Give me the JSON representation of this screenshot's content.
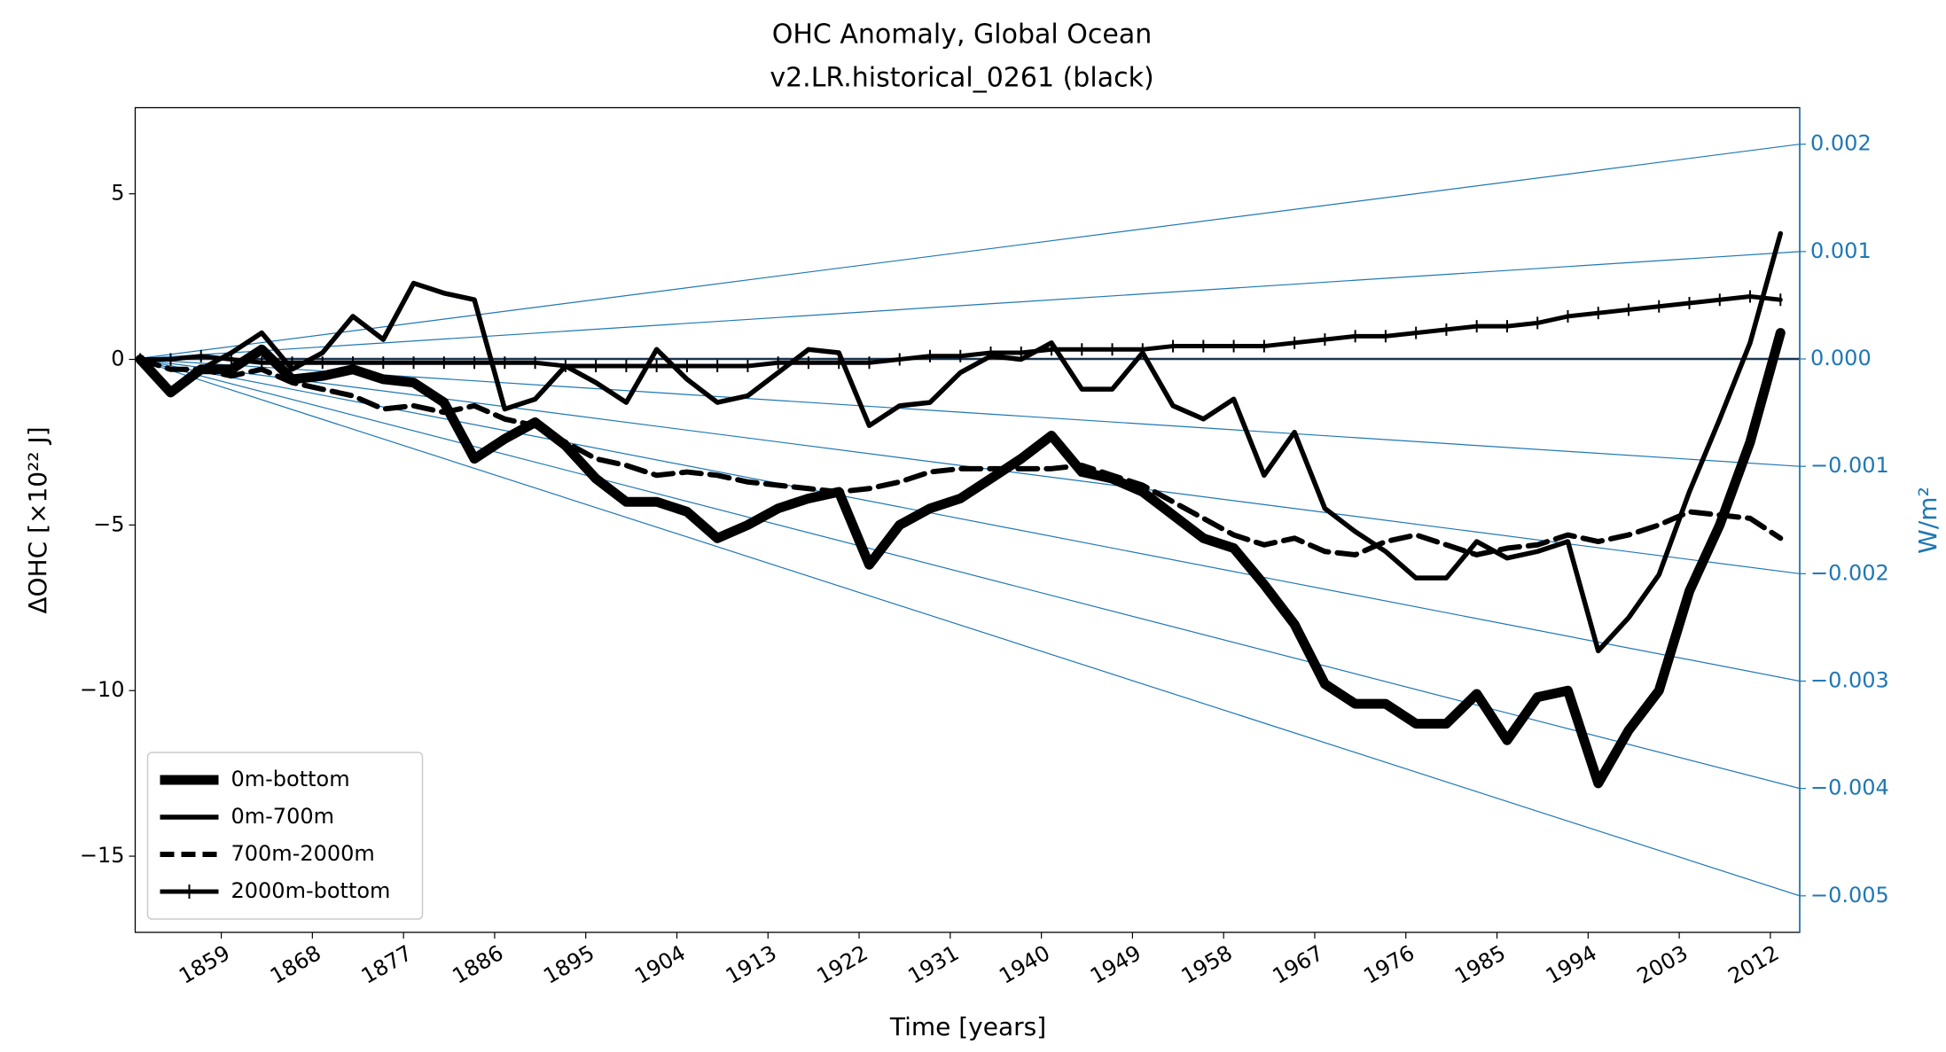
{
  "chart_data": {
    "type": "line",
    "title": "OHC Anomaly, Global Ocean",
    "subtitle": "v2.LR.historical_0261 (black)",
    "x_label": "Time [years]",
    "y_label": "ΔOHC [×10²² J]",
    "y2_label": "W/m²",
    "x": [
      1851,
      1854,
      1857,
      1860,
      1863,
      1866,
      1869,
      1872,
      1875,
      1878,
      1881,
      1884,
      1887,
      1890,
      1893,
      1896,
      1899,
      1902,
      1905,
      1908,
      1911,
      1914,
      1917,
      1920,
      1923,
      1926,
      1929,
      1932,
      1935,
      1938,
      1941,
      1944,
      1947,
      1950,
      1953,
      1956,
      1959,
      1962,
      1965,
      1968,
      1971,
      1974,
      1977,
      1980,
      1983,
      1986,
      1989,
      1992,
      1995,
      1998,
      2001,
      2004,
      2007,
      2010,
      2013
    ],
    "series": [
      {
        "name": "0m-bottom",
        "color": "#000000",
        "linestyle": "solid",
        "values": [
          0,
          -1.0,
          -0.3,
          -0.3,
          0.3,
          -0.6,
          -0.5,
          -0.3,
          -0.6,
          -0.7,
          -1.3,
          -3.0,
          -2.4,
          -1.9,
          -2.6,
          -3.6,
          -4.3,
          -4.3,
          -4.6,
          -5.4,
          -5.0,
          -4.5,
          -4.2,
          -4.0,
          -6.2,
          -5.0,
          -4.5,
          -4.2,
          -3.6,
          -3.0,
          -2.3,
          -3.4,
          -3.6,
          -4.0,
          -4.7,
          -5.4,
          -5.7,
          -6.8,
          -8.0,
          -9.8,
          -10.4,
          -10.4,
          -11.0,
          -11.0,
          -10.1,
          -11.5,
          -10.2,
          -10.0,
          -12.8,
          -11.2,
          -10.0,
          -7.0,
          -5.0,
          -2.5,
          0.8
        ]
      },
      {
        "name": "0m-700m",
        "color": "#000000",
        "linestyle": "solid",
        "values": [
          0,
          -1.0,
          -0.3,
          0.2,
          0.8,
          -0.3,
          0.2,
          1.3,
          0.6,
          2.3,
          2.0,
          1.8,
          -1.5,
          -1.2,
          -0.2,
          -0.7,
          -1.3,
          0.3,
          -0.6,
          -1.3,
          -1.1,
          -0.4,
          0.3,
          0.2,
          -2.0,
          -1.4,
          -1.3,
          -0.4,
          0.1,
          0.0,
          0.5,
          -0.9,
          -0.9,
          0.2,
          -1.4,
          -1.8,
          -1.2,
          -3.5,
          -2.2,
          -4.5,
          -5.2,
          -5.8,
          -6.6,
          -6.6,
          -5.5,
          -6.0,
          -5.8,
          -5.5,
          -8.8,
          -7.8,
          -6.5,
          -4.0,
          -1.8,
          0.5,
          3.8
        ]
      },
      {
        "name": "700m-2000m",
        "color": "#000000",
        "linestyle": "dashed",
        "values": [
          0,
          -0.3,
          -0.3,
          -0.5,
          -0.3,
          -0.7,
          -0.9,
          -1.1,
          -1.5,
          -1.4,
          -1.6,
          -1.4,
          -1.8,
          -2.0,
          -2.5,
          -3.0,
          -3.2,
          -3.5,
          -3.4,
          -3.5,
          -3.7,
          -3.8,
          -3.9,
          -4.0,
          -3.9,
          -3.7,
          -3.4,
          -3.3,
          -3.3,
          -3.3,
          -3.3,
          -3.2,
          -3.5,
          -3.8,
          -4.3,
          -4.8,
          -5.3,
          -5.6,
          -5.4,
          -5.8,
          -5.9,
          -5.5,
          -5.3,
          -5.6,
          -5.9,
          -5.7,
          -5.6,
          -5.3,
          -5.5,
          -5.3,
          -5.0,
          -4.6,
          -4.7,
          -4.8,
          -5.4
        ]
      },
      {
        "name": "2000m-bottom",
        "color": "#000000",
        "linestyle": "solid",
        "marker": "+",
        "values": [
          0,
          0,
          0.1,
          0,
          -0.1,
          -0.1,
          -0.1,
          -0.1,
          -0.1,
          -0.1,
          -0.1,
          -0.1,
          -0.1,
          -0.1,
          -0.2,
          -0.2,
          -0.2,
          -0.2,
          -0.2,
          -0.2,
          -0.2,
          -0.1,
          -0.1,
          -0.1,
          -0.1,
          0,
          0.1,
          0.1,
          0.2,
          0.2,
          0.3,
          0.3,
          0.3,
          0.3,
          0.4,
          0.4,
          0.4,
          0.4,
          0.5,
          0.6,
          0.7,
          0.7,
          0.8,
          0.9,
          1.0,
          1.0,
          1.1,
          1.3,
          1.4,
          1.5,
          1.6,
          1.7,
          1.8,
          1.9,
          1.8
        ]
      }
    ],
    "xlim": [
      1850.5,
      2014.9
    ],
    "xticks": [
      1859,
      1868,
      1877,
      1886,
      1895,
      1904,
      1913,
      1922,
      1931,
      1940,
      1949,
      1958,
      1967,
      1976,
      1985,
      1994,
      2003,
      2012
    ],
    "ylim": [
      -17.3,
      7.6
    ],
    "yticks": [
      {
        "value": -15,
        "label": "−15"
      },
      {
        "value": -10,
        "label": "−10"
      },
      {
        "value": -5,
        "label": "−5"
      },
      0,
      5
    ],
    "y2lim": [
      -0.00534,
      0.00234
    ],
    "y2ticks": [
      {
        "value": -0.005,
        "label": "−0.005"
      },
      {
        "value": -0.004,
        "label": "−0.004"
      },
      {
        "value": -0.003,
        "label": "−0.003"
      },
      {
        "value": -0.002,
        "label": "−0.002"
      },
      {
        "value": -0.001,
        "label": "−0.001"
      },
      {
        "value": 0,
        "label": "0.000"
      },
      0.001,
      0.002
    ],
    "y2_color": "#1f77b4",
    "legend": "lower left"
  }
}
